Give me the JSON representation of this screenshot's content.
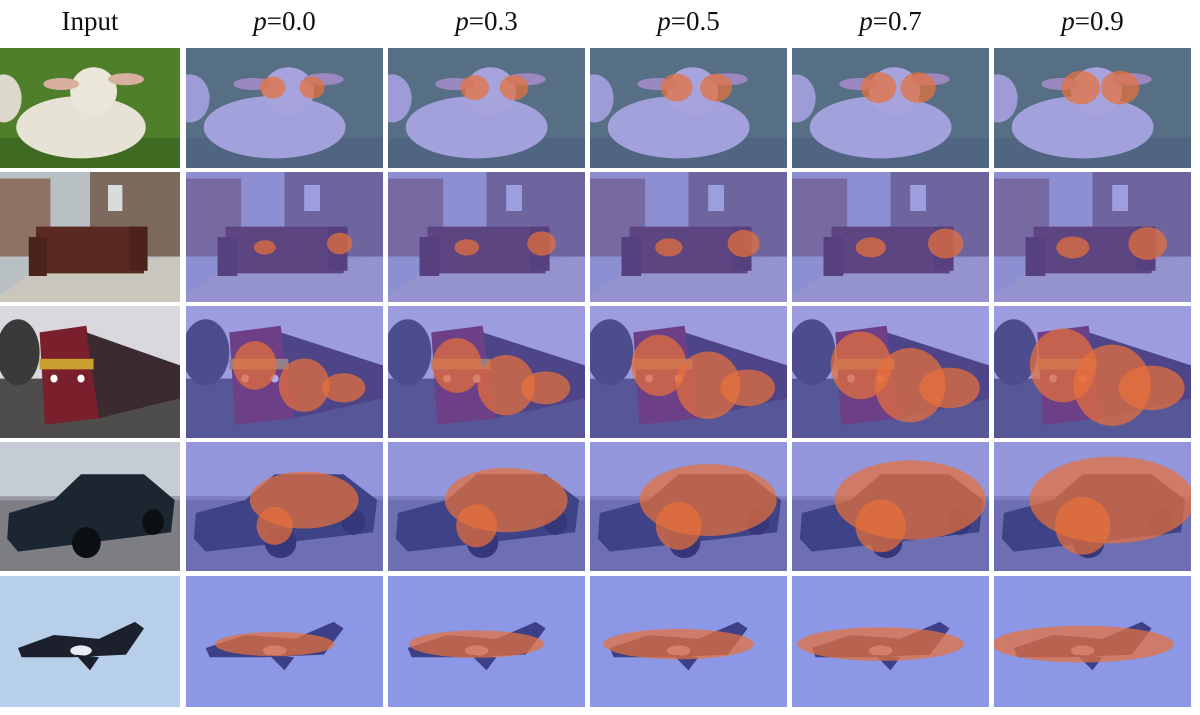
{
  "header": {
    "columns": [
      {
        "label": "Input"
      },
      {
        "var": "p",
        "eq": "=0.0"
      },
      {
        "var": "p",
        "eq": "=0.3"
      },
      {
        "var": "p",
        "eq": "=0.5"
      },
      {
        "var": "p",
        "eq": "=0.7"
      },
      {
        "var": "p",
        "eq": "=0.9"
      }
    ]
  }
}
